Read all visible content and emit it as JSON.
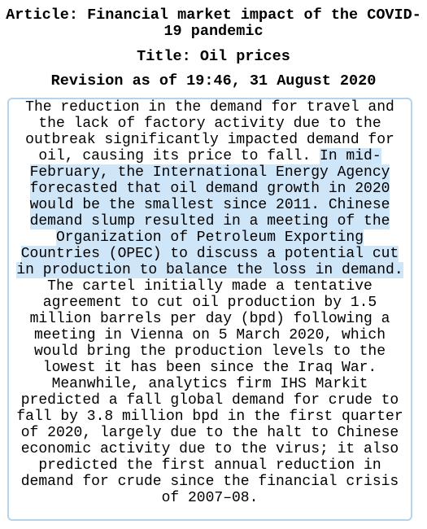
{
  "article": {
    "label": "Article: Financial market impact of the COVID-19 pandemic"
  },
  "section": {
    "label": "Title: Oil prices"
  },
  "revision": {
    "label": "Revision as of 19:46, 31 August 2020"
  },
  "body": {
    "part1": "The reduction in the demand for travel and the lack of factory activity due to the outbreak significantly impacted demand for oil, causing its price to fall. ",
    "highlight": "In mid-February, the International Energy Agency forecasted that oil demand growth in 2020 would be the smallest since 2011. Chinese demand slump resulted in a meeting of the Organization of Petroleum Exporting Countries (OPEC) to discuss a potential cut in production to balance the loss in demand.",
    "part2": " The cartel initially made a tentative agreement to cut oil production by 1.5 million barrels per day (bpd) following a meeting in Vienna on 5 March 2020, which would bring the production levels to the lowest it has been since the Iraq War. Meanwhile, analytics firm IHS Markit predicted a fall global demand for crude to fall by 3.8 million bpd in the first quarter of 2020, largely due to the halt to Chinese economic activity due to the virus; it also predicted the first annual reduction in demand for crude since the financial crisis of 2007–08."
  },
  "colors": {
    "highlight": "#cfe5f8",
    "border": "#b3d4ee"
  }
}
